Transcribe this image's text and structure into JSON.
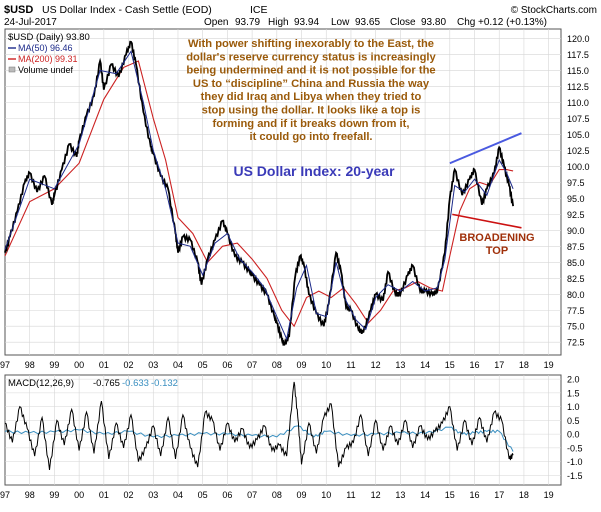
{
  "header": {
    "symbol": "$USD",
    "name": "US Dollar Index - Cash Settle (EOD)",
    "exchange": "ICE",
    "watermark": "© StockCharts.com",
    "date": "24-Jul-2017",
    "open_label": "Open",
    "open": "93.79",
    "high_label": "High",
    "high": "93.94",
    "low_label": "Low",
    "low": "93.65",
    "close_label": "Close",
    "close": "93.80",
    "chg_label": "Chg",
    "chg": "+0.12 (+0.13%)"
  },
  "legend": {
    "line1": "$USD (Daily) 93.80",
    "line2": "MA(50) 96.46",
    "line3": "MA(200) 99.31",
    "line4": "Volume undef"
  },
  "annotations": {
    "commentary": [
      "With power shifting inexorably to the East, the",
      "dollar's reserve currency status is increasingly",
      "being undermined and it is not possible for the",
      "US to “discipline” China and Russia the way",
      "they did Iraq and Libya when they tried to",
      "stop using the dollar. It looks like a top is",
      "forming and if it breaks down from it,",
      "it could go into freefall."
    ],
    "chart_title": "US Dollar Index: 20-year",
    "pattern_label_1": "BROADENING",
    "pattern_label_2": "TOP"
  },
  "macd": {
    "label": "MACD(12,26,9)",
    "v1": "-0.765",
    "v2": "-0.633",
    "v3": "-0.132"
  },
  "colors": {
    "price": "#000000",
    "ma50": "#1c2a8a",
    "ma200": "#cc2222",
    "commentary": "#9a5a0a",
    "title": "#3a3ab8",
    "pattern_label": "#a0300a",
    "upper_trendline": "#4a5ae0",
    "lower_trendline": "#cc1111",
    "macd_line": "#000000",
    "signal_line": "#3a8fc0",
    "grid": "#d6d6d6"
  },
  "chart_data": [
    {
      "type": "line",
      "title": "",
      "xlabel": "",
      "ylabel": "",
      "x_ticks": [
        "97",
        "98",
        "99",
        "00",
        "01",
        "02",
        "03",
        "04",
        "05",
        "06",
        "07",
        "08",
        "09",
        "10",
        "11",
        "12",
        "13",
        "14",
        "15",
        "16",
        "17",
        "18",
        "19"
      ],
      "y_ticks": [
        72.5,
        75.0,
        77.5,
        80.0,
        82.5,
        85.0,
        87.5,
        90.0,
        92.5,
        95.0,
        97.5,
        100.0,
        102.5,
        105.0,
        107.5,
        110.0,
        112.5,
        115.0,
        117.5,
        120.0
      ],
      "ylim": [
        70.5,
        121.5
      ],
      "xlim": [
        1997.0,
        2019.5
      ],
      "y_scale": "linear",
      "grid": true,
      "legend_position": "top-left",
      "series": [
        {
          "name": "$USD (Daily)",
          "x": [
            1997.0,
            1997.2,
            1997.5,
            1997.8,
            1998.0,
            1998.3,
            1998.6,
            1998.9,
            1999.0,
            1999.3,
            1999.6,
            1999.9,
            2000.0,
            2000.3,
            2000.6,
            2000.85,
            2001.0,
            2001.3,
            2001.6,
            2001.9,
            2002.1,
            2002.3,
            2002.6,
            2002.9,
            2003.0,
            2003.3,
            2003.6,
            2003.9,
            2004.0,
            2004.2,
            2004.5,
            2004.8,
            2004.95,
            2005.2,
            2005.5,
            2005.8,
            2006.0,
            2006.3,
            2006.6,
            2006.9,
            2007.0,
            2007.3,
            2007.6,
            2007.9,
            2008.0,
            2008.2,
            2008.3,
            2008.5,
            2008.75,
            2008.95,
            2009.1,
            2009.3,
            2009.6,
            2009.9,
            2010.1,
            2010.4,
            2010.6,
            2010.8,
            2011.0,
            2011.3,
            2011.5,
            2011.8,
            2012.0,
            2012.3,
            2012.5,
            2012.8,
            2013.0,
            2013.3,
            2013.5,
            2013.8,
            2014.0,
            2014.3,
            2014.5,
            2014.8,
            2015.0,
            2015.2,
            2015.5,
            2015.8,
            2016.0,
            2016.3,
            2016.5,
            2016.8,
            2017.0,
            2017.2,
            2017.4,
            2017.56
          ],
          "values": [
            86.5,
            89.0,
            93.0,
            97.5,
            99.0,
            96.0,
            98.5,
            94.0,
            95.5,
            99.5,
            103.5,
            101.5,
            104.0,
            108.0,
            111.0,
            116.5,
            112.0,
            116.0,
            114.0,
            117.5,
            119.5,
            116.0,
            108.5,
            103.0,
            102.0,
            98.5,
            96.5,
            89.5,
            86.5,
            89.0,
            88.5,
            85.0,
            81.5,
            85.5,
            88.5,
            91.5,
            89.5,
            86.0,
            85.0,
            83.5,
            83.0,
            81.5,
            80.0,
            76.5,
            75.5,
            73.0,
            72.0,
            73.5,
            83.0,
            86.0,
            84.5,
            80.0,
            77.0,
            75.0,
            78.5,
            86.5,
            83.5,
            78.0,
            77.5,
            74.5,
            74.0,
            77.5,
            80.0,
            79.0,
            83.5,
            80.0,
            80.0,
            83.0,
            84.5,
            80.5,
            80.5,
            80.0,
            80.5,
            86.5,
            95.0,
            99.5,
            95.5,
            98.0,
            99.5,
            94.0,
            96.5,
            99.0,
            103.0,
            100.0,
            97.0,
            93.8
          ]
        },
        {
          "name": "MA(50)",
          "x": [
            1997.0,
            1998.0,
            1999.0,
            2000.0,
            2000.85,
            2001.5,
            2002.1,
            2002.6,
            2003.0,
            2003.5,
            2004.0,
            2004.5,
            2005.0,
            2005.5,
            2006.0,
            2006.5,
            2007.0,
            2007.5,
            2008.0,
            2008.4,
            2008.8,
            2009.2,
            2009.6,
            2010.0,
            2010.4,
            2010.8,
            2011.2,
            2011.6,
            2012.0,
            2012.5,
            2013.0,
            2013.5,
            2014.0,
            2014.5,
            2014.8,
            2015.2,
            2015.6,
            2016.0,
            2016.5,
            2017.0,
            2017.3,
            2017.56
          ],
          "values": [
            87.0,
            98.0,
            96.5,
            103.5,
            115.0,
            114.5,
            118.0,
            110.0,
            102.5,
            96.5,
            88.0,
            87.5,
            83.0,
            88.0,
            89.5,
            85.5,
            83.5,
            81.0,
            76.5,
            73.0,
            81.0,
            84.5,
            77.0,
            76.5,
            85.0,
            79.0,
            76.0,
            74.5,
            79.5,
            81.5,
            80.5,
            82.0,
            80.5,
            81.0,
            85.5,
            97.0,
            96.0,
            98.0,
            95.5,
            101.0,
            99.0,
            96.5
          ]
        },
        {
          "name": "MA(200)",
          "x": [
            1997.0,
            1998.0,
            1999.0,
            2000.0,
            2001.0,
            2001.8,
            2002.4,
            2003.0,
            2003.5,
            2004.0,
            2004.6,
            2005.2,
            2005.8,
            2006.4,
            2007.0,
            2007.6,
            2008.2,
            2008.7,
            2009.2,
            2009.7,
            2010.2,
            2010.7,
            2011.2,
            2011.7,
            2012.2,
            2012.7,
            2013.2,
            2013.7,
            2014.2,
            2014.7,
            2015.0,
            2015.4,
            2015.8,
            2016.2,
            2016.6,
            2017.0,
            2017.3,
            2017.56
          ],
          "values": [
            86.0,
            94.5,
            96.5,
            100.5,
            110.5,
            115.5,
            116.5,
            107.5,
            101.0,
            92.0,
            89.5,
            85.0,
            87.5,
            88.0,
            85.5,
            82.5,
            77.5,
            75.0,
            79.5,
            80.5,
            79.5,
            81.0,
            78.5,
            75.5,
            77.5,
            80.5,
            81.0,
            82.0,
            81.0,
            80.5,
            86.0,
            93.0,
            96.5,
            97.5,
            97.0,
            99.5,
            99.5,
            99.3
          ]
        }
      ],
      "trendlines": [
        {
          "name": "upper",
          "x": [
            2015.0,
            2017.9
          ],
          "values": [
            100.5,
            105.2
          ]
        },
        {
          "name": "lower",
          "x": [
            2015.1,
            2017.9
          ],
          "values": [
            92.5,
            90.4
          ]
        }
      ]
    },
    {
      "type": "line",
      "title": "",
      "x_ticks": [
        "97",
        "98",
        "99",
        "00",
        "01",
        "02",
        "03",
        "04",
        "05",
        "06",
        "07",
        "08",
        "09",
        "10",
        "11",
        "12",
        "13",
        "14",
        "15",
        "16",
        "17",
        "18",
        "19"
      ],
      "y_ticks": [
        -1.5,
        -1.0,
        -0.5,
        0.0,
        0.5,
        1.0,
        1.5,
        2.0
      ],
      "ylim": [
        -1.85,
        2.15
      ],
      "xlim": [
        1997.0,
        2019.5
      ],
      "grid": true,
      "series": [
        {
          "name": "MACD(12,26,9)",
          "x": [
            1997.0,
            1997.3,
            1997.6,
            1997.9,
            1998.2,
            1998.5,
            1998.8,
            1999.1,
            1999.4,
            1999.7,
            2000.0,
            2000.3,
            2000.6,
            2000.9,
            2001.2,
            2001.5,
            2001.8,
            2002.1,
            2002.4,
            2002.7,
            2003.0,
            2003.3,
            2003.6,
            2003.9,
            2004.2,
            2004.5,
            2004.8,
            2005.1,
            2005.4,
            2005.7,
            2006.0,
            2006.3,
            2006.6,
            2006.9,
            2007.2,
            2007.5,
            2007.8,
            2008.1,
            2008.4,
            2008.7,
            2008.85,
            2009.0,
            2009.3,
            2009.6,
            2009.9,
            2010.2,
            2010.5,
            2010.8,
            2011.1,
            2011.4,
            2011.7,
            2012.0,
            2012.3,
            2012.6,
            2012.9,
            2013.2,
            2013.5,
            2013.8,
            2014.1,
            2014.4,
            2014.7,
            2015.0,
            2015.3,
            2015.6,
            2015.9,
            2016.2,
            2016.5,
            2016.8,
            2017.1,
            2017.4,
            2017.56
          ],
          "values": [
            0.4,
            -0.3,
            1.0,
            0.2,
            -0.8,
            0.6,
            -1.3,
            0.5,
            -0.4,
            0.9,
            -0.6,
            0.8,
            -0.7,
            1.2,
            -0.9,
            0.4,
            -0.5,
            0.7,
            -1.0,
            -0.5,
            0.3,
            -0.8,
            0.6,
            -0.9,
            0.7,
            -0.5,
            -1.2,
            0.8,
            0.5,
            -0.6,
            0.4,
            -0.3,
            0.2,
            -0.5,
            -0.2,
            0.3,
            -0.6,
            -0.4,
            -0.8,
            1.9,
            0.6,
            -1.1,
            0.4,
            -0.7,
            0.6,
            1.1,
            -1.2,
            -0.5,
            -0.3,
            0.7,
            -0.8,
            0.5,
            -0.6,
            0.3,
            -0.4,
            0.5,
            -0.5,
            0.3,
            -0.2,
            0.1,
            0.4,
            1.0,
            -0.6,
            0.5,
            -0.4,
            0.6,
            -0.3,
            0.8,
            0.5,
            -0.9,
            -0.765
          ]
        },
        {
          "name": "Signal",
          "x": [
            1997.0,
            1998.0,
            1999.0,
            2000.0,
            2001.0,
            2002.0,
            2003.0,
            2004.0,
            2005.0,
            2006.0,
            2007.0,
            2008.0,
            2008.85,
            2009.5,
            2010.0,
            2011.0,
            2012.0,
            2013.0,
            2014.0,
            2015.0,
            2015.5,
            2016.0,
            2016.5,
            2017.0,
            2017.56
          ],
          "values": [
            0.1,
            0.05,
            0.08,
            0.15,
            0.0,
            0.1,
            -0.1,
            -0.05,
            0.02,
            0.0,
            -0.05,
            -0.1,
            0.3,
            -0.1,
            0.1,
            -0.05,
            0.0,
            0.05,
            0.02,
            0.25,
            0.0,
            0.05,
            0.1,
            0.1,
            -0.632
          ]
        }
      ]
    }
  ]
}
